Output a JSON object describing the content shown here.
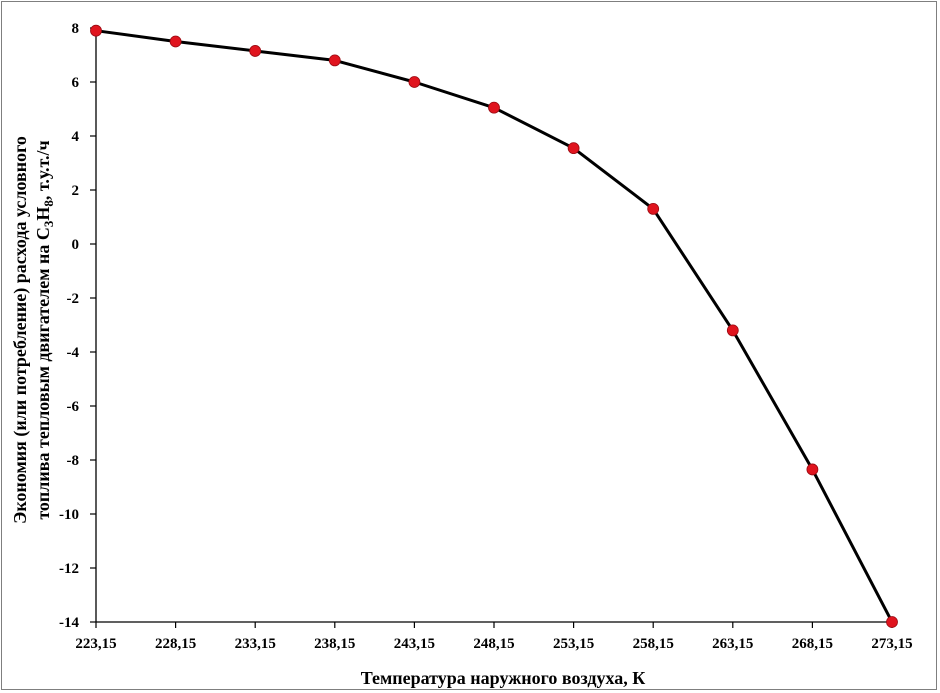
{
  "chart_data": {
    "type": "line",
    "xlabel": "Температура наружного воздуха, К",
    "ylabel_line1": "Экономия (или потребление) расхода условного",
    "ylabel_line2_prefix": "топлива тепловым двигателем на C",
    "ylabel_sub1": "3",
    "ylabel_mid": "H",
    "ylabel_sub2": "8",
    "ylabel_suffix": ", т.у.т./ч",
    "categories": [
      "223,15",
      "228,15",
      "233,15",
      "238,15",
      "243,15",
      "248,15",
      "253,15",
      "258,15",
      "263,15",
      "268,15",
      "273,15"
    ],
    "values": [
      7.9,
      7.5,
      7.15,
      6.8,
      6.0,
      5.05,
      3.55,
      1.3,
      -3.2,
      -8.35,
      -14.0
    ],
    "ylim": [
      -14,
      8
    ],
    "yticks": [
      "8",
      "6",
      "4",
      "2",
      "0",
      "-2",
      "-4",
      "-6",
      "-8",
      "-10",
      "-12",
      "-14"
    ],
    "ytick_values": [
      8,
      6,
      4,
      2,
      0,
      -2,
      -4,
      -6,
      -8,
      -10,
      -12,
      -14
    ],
    "grid": false,
    "line_color": "#000000",
    "marker_color": "#e0141e"
  }
}
